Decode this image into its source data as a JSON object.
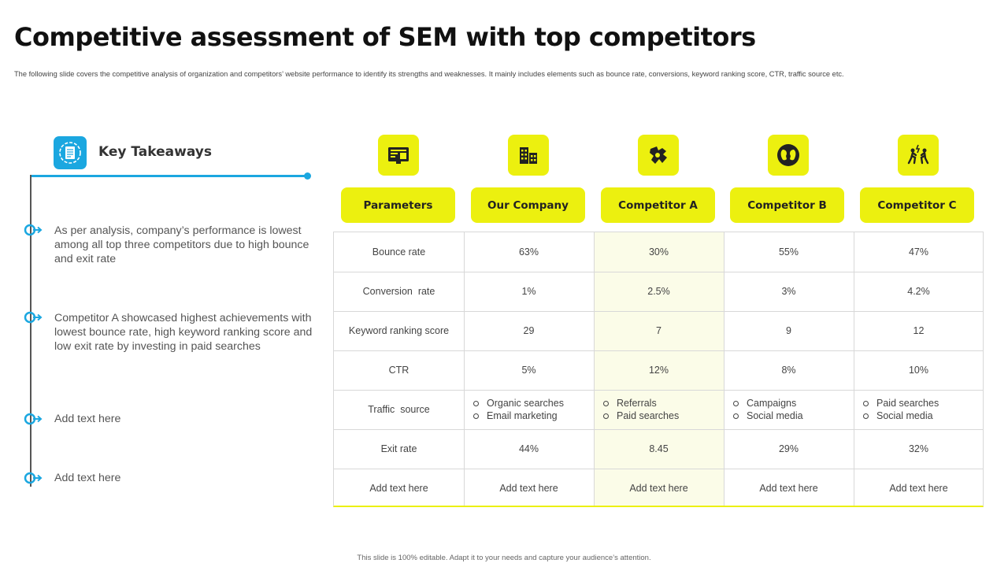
{
  "title": "Competitive assessment of SEM with top competitors",
  "subtitle": "The following slide covers the competitive analysis of organization and competitors’ website performance to identify its strengths and weaknesses. It mainly includes elements such as bounce rate, conversions, keyword ranking score, CTR, traffic source etc.",
  "takeaways": {
    "title": "Key Takeaways",
    "items": [
      "As per analysis, company’s performance is lowest among all top three competitors due to high bounce and exit rate",
      "Competitor A showcased highest achievements with lowest bounce rate, high keyword ranking score and low exit rate by investing in paid searches",
      "Add text here",
      "Add text here"
    ]
  },
  "table": {
    "headers": [
      "Parameters",
      "Our Company",
      "Competitor A",
      "Competitor B",
      "Competitor C"
    ],
    "icons": [
      "monitor-icon",
      "buildings-icon",
      "puzzle-icon",
      "heads-icon",
      "competition-icon"
    ],
    "rows": [
      [
        "Bounce rate",
        "63%",
        "30%",
        "55%",
        "47%"
      ],
      [
        "Conversion  rate",
        "1%",
        "2.5%",
        "3%",
        "4.2%"
      ],
      [
        "Keyword ranking score",
        "29",
        "7",
        "9",
        "12"
      ],
      [
        "CTR",
        "5%",
        "12%",
        "8%",
        "10%"
      ],
      [
        "Traffic  source"
      ],
      [
        "Exit rate",
        "44%",
        "8.45",
        "29%",
        "32%"
      ],
      [
        "Add text here",
        "Add text here",
        "Add text here",
        "Add text here",
        "Add text here"
      ]
    ],
    "traffic_sources": [
      [
        "Organic searches",
        "Email marketing"
      ],
      [
        "Referrals",
        "Paid searches"
      ],
      [
        "Campaigns",
        "Social media"
      ],
      [
        "Paid searches",
        "Social media"
      ]
    ]
  },
  "colors": {
    "accent_yellow": "#ecf00f",
    "accent_blue": "#1ba7e0"
  },
  "footer": "This slide is 100% editable. Adapt it to your needs and capture your audience’s attention."
}
